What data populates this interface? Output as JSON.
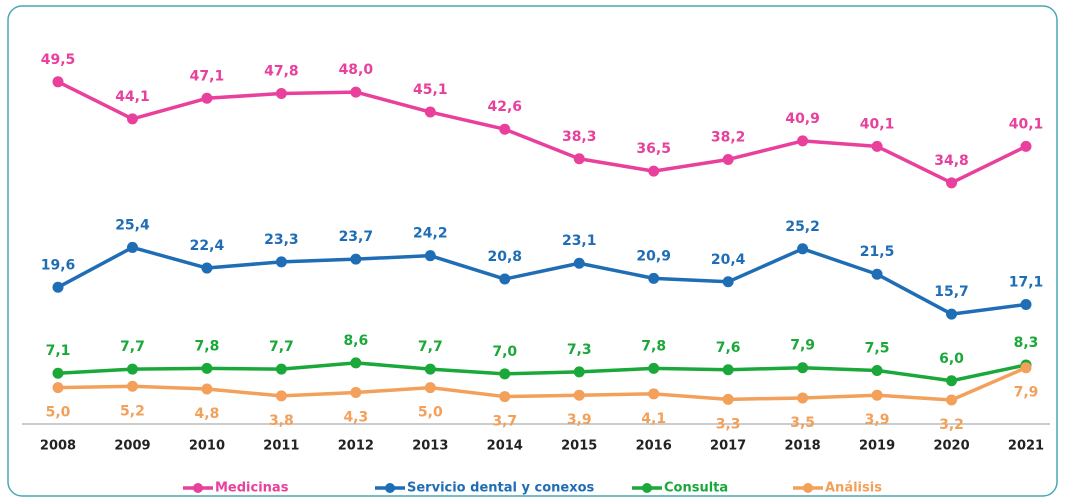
{
  "chart_data": {
    "type": "line",
    "categories": [
      "2008",
      "2009",
      "2010",
      "2011",
      "2012",
      "2013",
      "2014",
      "2015",
      "2016",
      "2017",
      "2018",
      "2019",
      "2020",
      "2021"
    ],
    "ylim": [
      0,
      55
    ],
    "grid": false,
    "legend": "bottom",
    "series": [
      {
        "name": "Medicinas",
        "color": "#e8409c",
        "values": [
          49.5,
          44.1,
          47.1,
          47.8,
          48.0,
          45.1,
          42.6,
          38.3,
          36.5,
          38.2,
          40.9,
          40.1,
          34.8,
          40.1
        ],
        "value_labels": [
          "49,5",
          "44,1",
          "47,1",
          "47,8",
          "48,0",
          "45,1",
          "42,6",
          "38,3",
          "36,5",
          "38,2",
          "40,9",
          "40,1",
          "34,8",
          "40,1"
        ]
      },
      {
        "name": "Servicio dental y conexos",
        "color": "#1f6db5",
        "values": [
          19.6,
          25.4,
          22.4,
          23.3,
          23.7,
          24.2,
          20.8,
          23.1,
          20.9,
          20.4,
          25.2,
          21.5,
          15.7,
          17.1
        ],
        "value_labels": [
          "19,6",
          "25,4",
          "22,4",
          "23,3",
          "23,7",
          "24,2",
          "20,8",
          "23,1",
          "20,9",
          "20,4",
          "25,2",
          "21,5",
          "15,7",
          "17,1"
        ]
      },
      {
        "name": "Consulta",
        "color": "#1aa83a",
        "values": [
          7.1,
          7.7,
          7.8,
          7.7,
          8.6,
          7.7,
          7.0,
          7.3,
          7.8,
          7.6,
          7.9,
          7.5,
          6.0,
          8.3
        ],
        "value_labels": [
          "7,1",
          "7,7",
          "7,8",
          "7,7",
          "8,6",
          "7,7",
          "7,0",
          "7,3",
          "7,8",
          "7,6",
          "7,9",
          "7,5",
          "6,0",
          "8,3"
        ]
      },
      {
        "name": "Análisis",
        "color": "#f3a05a",
        "values": [
          5.0,
          5.2,
          4.8,
          3.8,
          4.3,
          5.0,
          3.7,
          3.9,
          4.1,
          3.3,
          3.5,
          3.9,
          3.2,
          7.9
        ],
        "value_labels": [
          "5,0",
          "5,2",
          "4,8",
          "3,8",
          "4,3",
          "5,0",
          "3,7",
          "3,9",
          "4,1",
          "3,3",
          "3,5",
          "3,9",
          "3,2",
          "7,9"
        ]
      }
    ]
  }
}
